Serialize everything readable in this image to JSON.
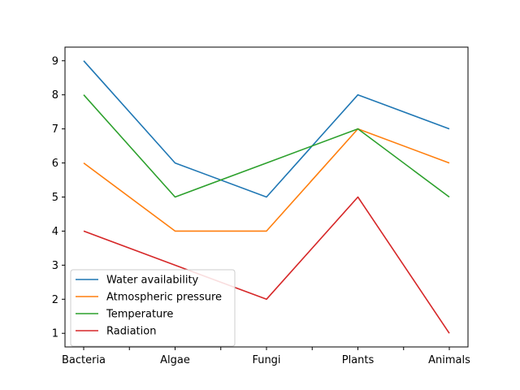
{
  "chart_data": {
    "type": "line",
    "title": "",
    "xlabel": "",
    "ylabel": "",
    "categories": [
      "Bacteria",
      "Algae",
      "Fungi",
      "Plants",
      "Animals"
    ],
    "x_ticks": [
      "Bacteria",
      "",
      "Algae",
      "",
      "Fungi",
      "",
      "Plants",
      "",
      "Animals"
    ],
    "ylim": [
      0.6,
      9.4
    ],
    "y_ticks": [
      1,
      2,
      3,
      4,
      5,
      6,
      7,
      8,
      9
    ],
    "grid": false,
    "legend_position": "lower-left",
    "series": [
      {
        "name": "Water availability",
        "color": "#1f77b4",
        "values": [
          9,
          6,
          5,
          8,
          7
        ]
      },
      {
        "name": "Atmospheric pressure",
        "color": "#ff7f0e",
        "values": [
          6,
          4,
          4,
          7,
          6
        ]
      },
      {
        "name": "Temperature",
        "color": "#2ca02c",
        "values": [
          8,
          5,
          6,
          7,
          5
        ]
      },
      {
        "name": "Radiation",
        "color": "#d62728",
        "values": [
          4,
          3,
          2,
          5,
          1
        ]
      }
    ]
  }
}
